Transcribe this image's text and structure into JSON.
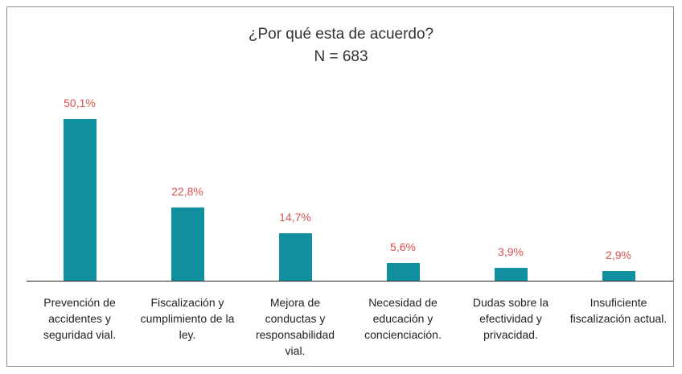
{
  "chart_data": {
    "type": "bar",
    "title": "¿Por qué esta de acuerdo?",
    "subtitle": "N = 683",
    "categories": [
      "Prevención de accidentes y seguridad vial.",
      "Fiscalización y cumplimiento de la ley.",
      "Mejora de conductas y responsabilidad vial.",
      "Necesidad de educación y concienciación.",
      "Dudas sobre la efectividad y privacidad.",
      "Insuficiente fiscalización actual."
    ],
    "values": [
      50.1,
      22.8,
      14.7,
      5.6,
      3.9,
      2.9
    ],
    "value_labels": [
      "50,1%",
      "22,8%",
      "14,7%",
      "5,6%",
      "3,9%",
      "2,9%"
    ],
    "color": "#13909f",
    "label_color": "#d9534f"
  }
}
